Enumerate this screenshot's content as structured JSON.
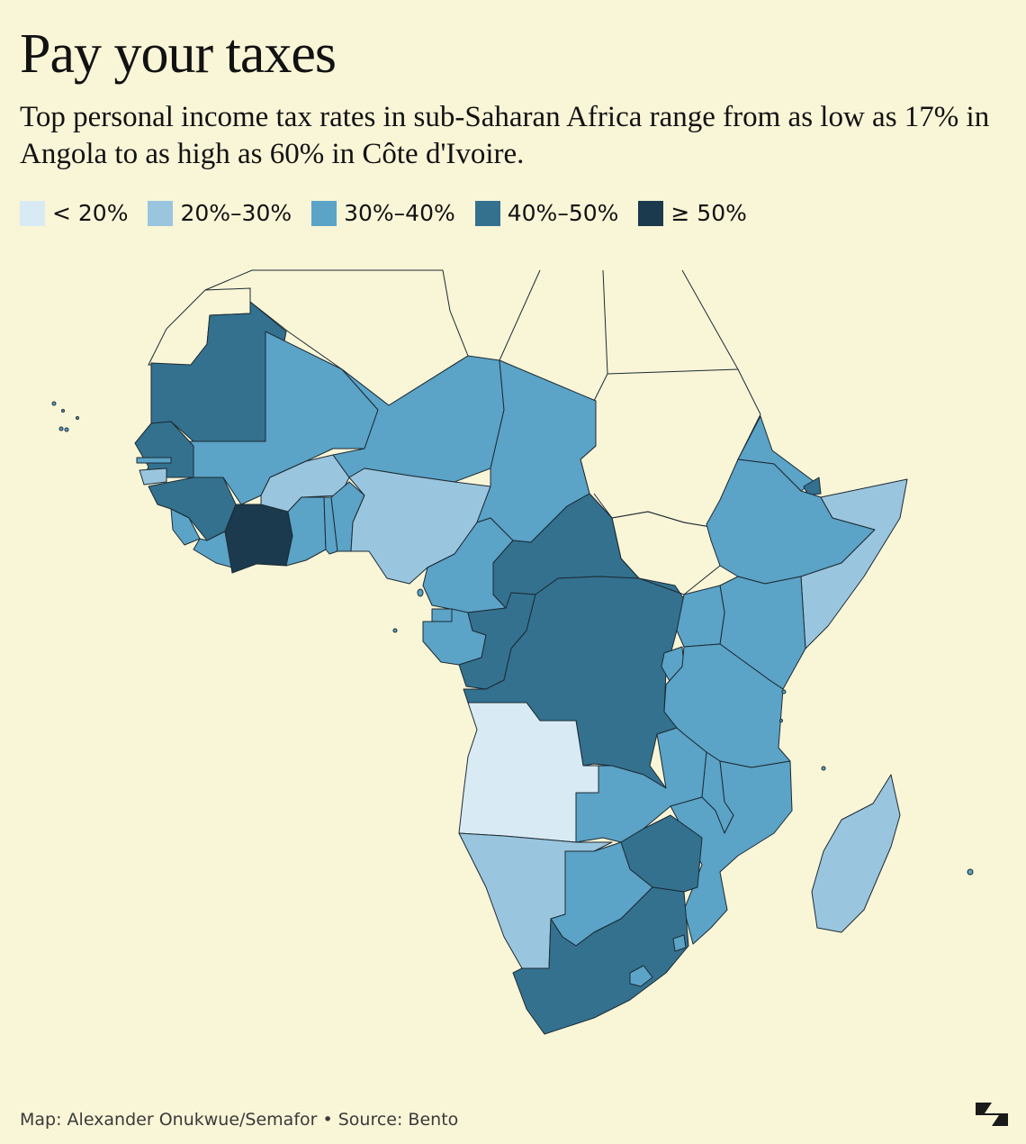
{
  "title": "Pay your taxes",
  "subtitle": "Top personal income tax rates in sub-Saharan Africa range from as low as 17% in Angola to as high as 60% in Côte d'Ivoire.",
  "legend": [
    {
      "label": "< 20%",
      "color": "#d8eaf4"
    },
    {
      "label": "20%–30%",
      "color": "#9ac5de"
    },
    {
      "label": "30%–40%",
      "color": "#5ba3c7"
    },
    {
      "label": "40%–50%",
      "color": "#33718f"
    },
    {
      "label": "≥ 50%",
      "color": "#1b3a4e"
    }
  ],
  "footer": "Map: Alexander Onukwue/Semafor • Source: Bento",
  "logo_icon": "semafor-logo-icon"
}
